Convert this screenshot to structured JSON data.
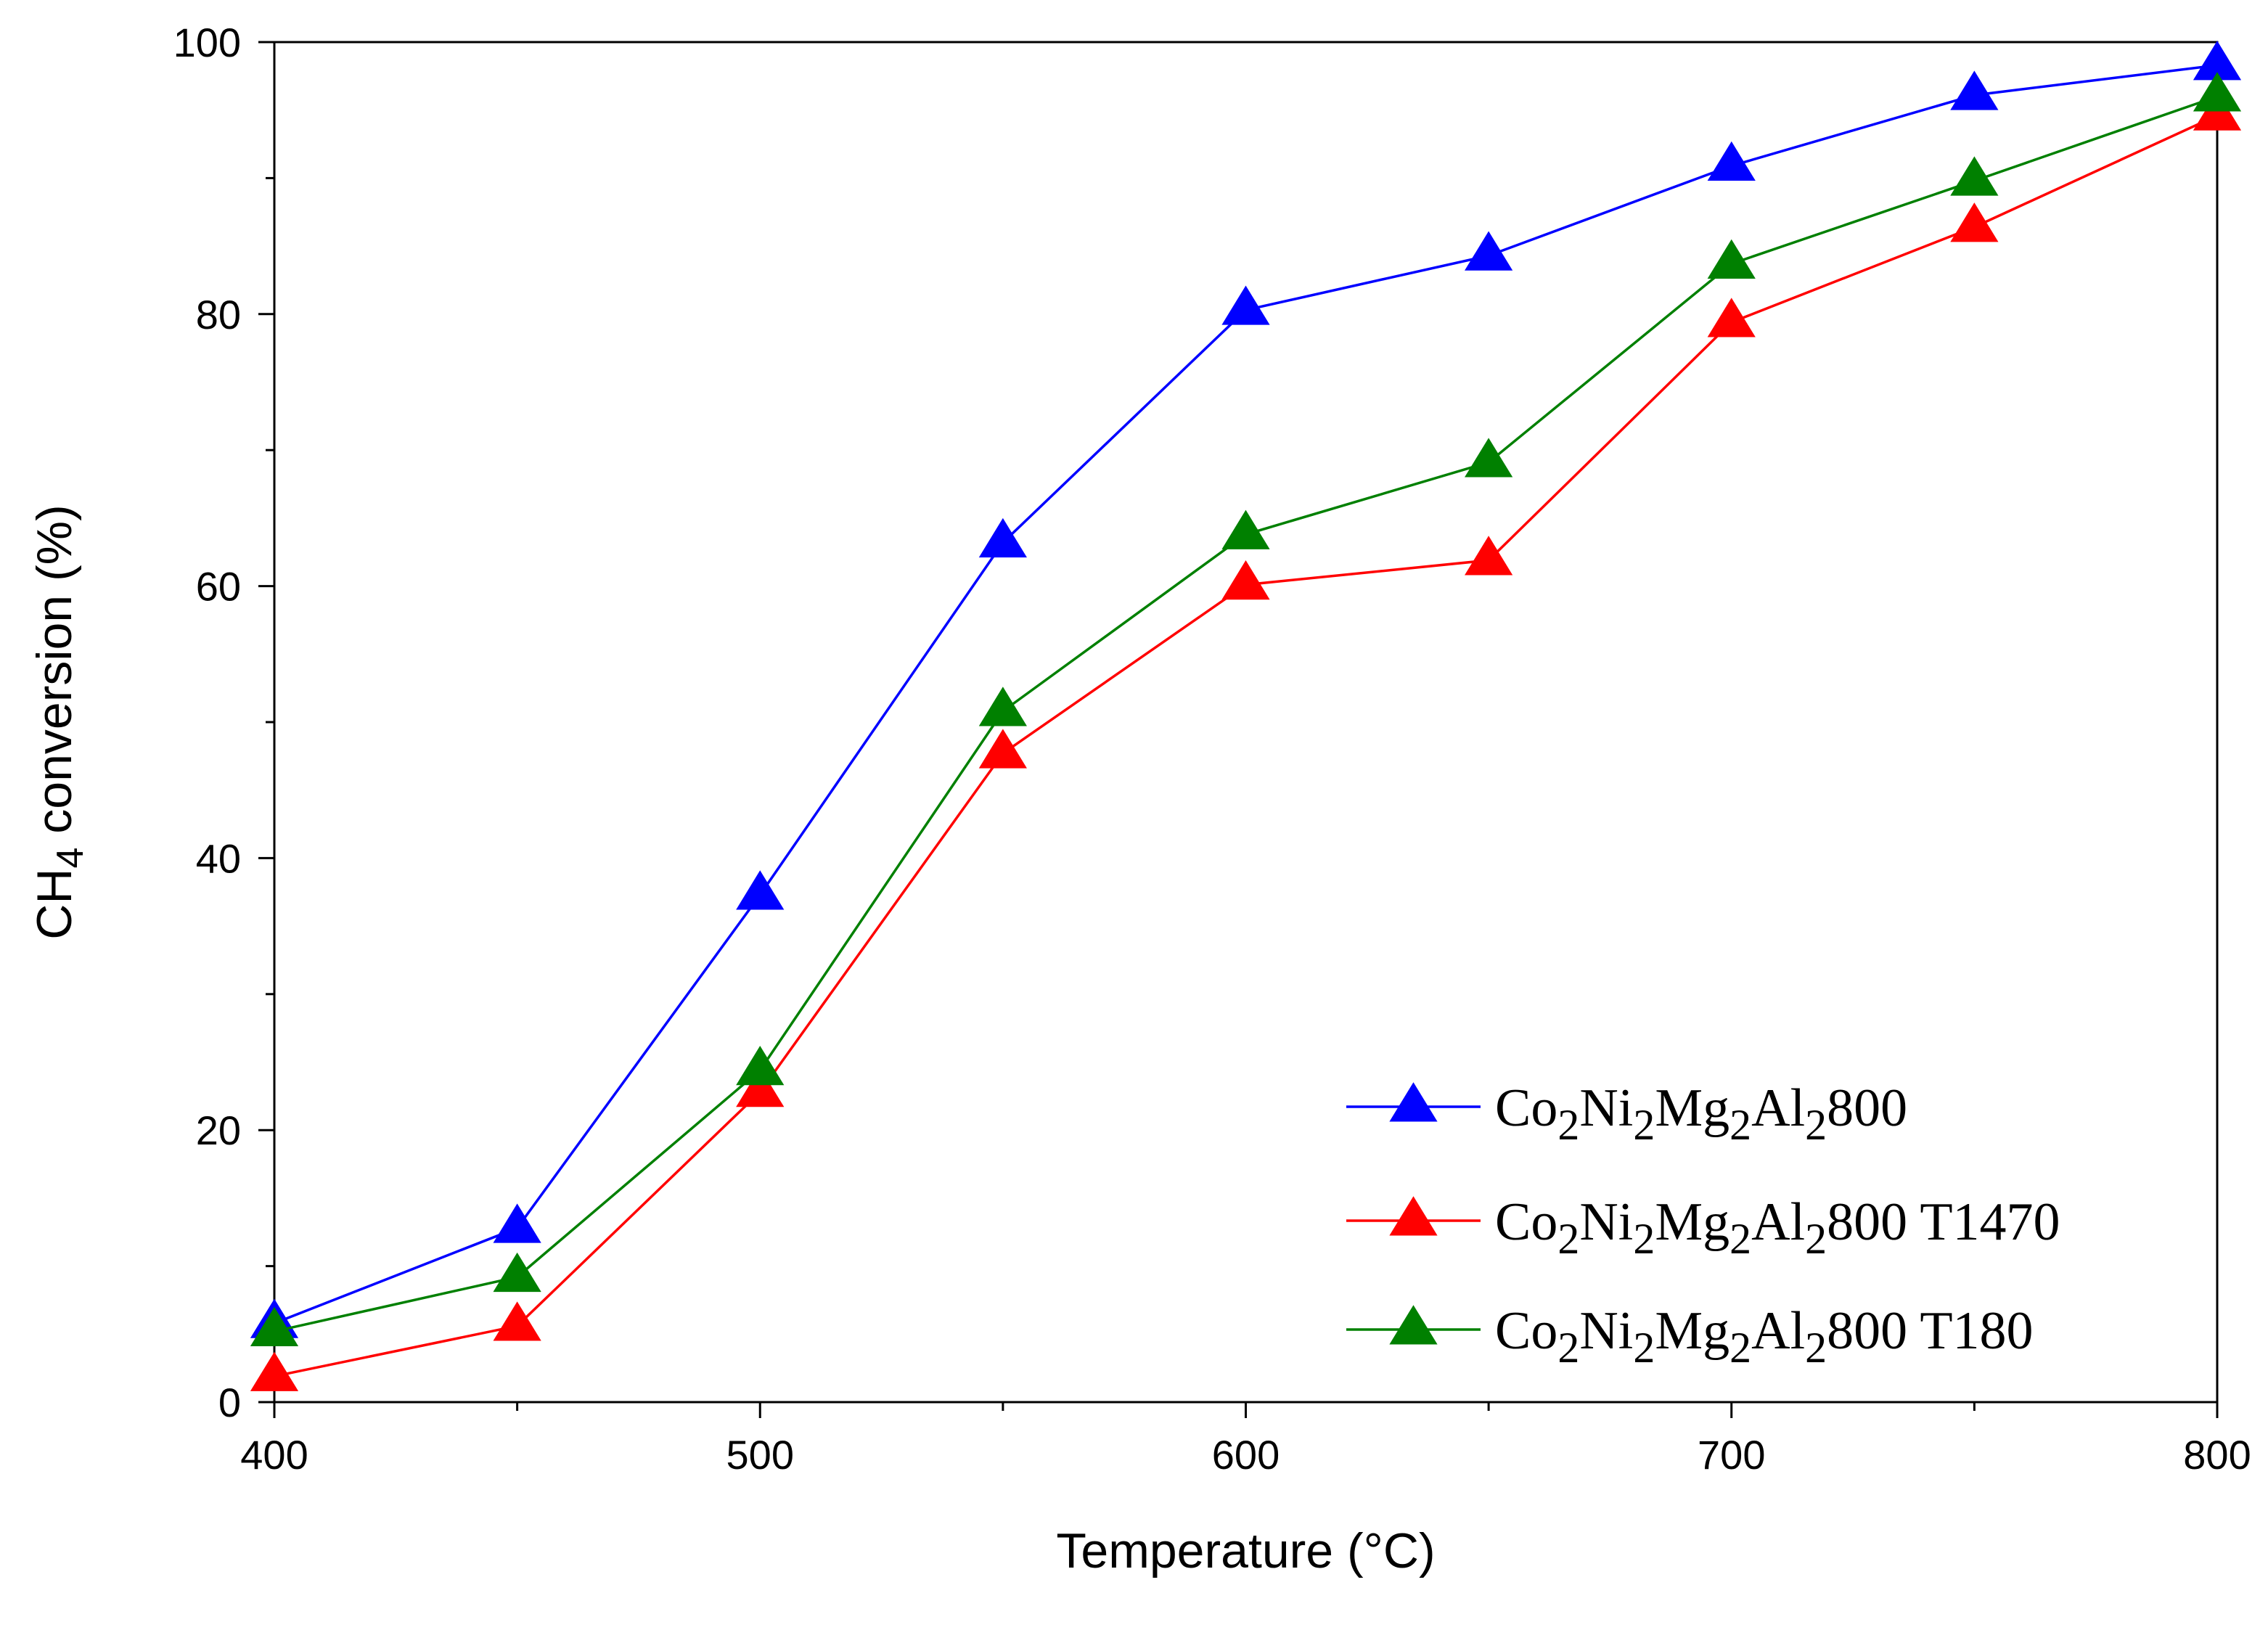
{
  "chart_data": {
    "type": "line",
    "title": "",
    "xlabel": "Temperature (°C)",
    "ylabel": "CH4 conversion (%)",
    "ylabel_parts": {
      "main": "CH",
      "sub": "4",
      "rest": " conversion (%)"
    },
    "xlim": [
      400,
      800
    ],
    "ylim": [
      0,
      100
    ],
    "xticks": [
      400,
      500,
      600,
      700,
      800
    ],
    "yticks": [
      0,
      20,
      40,
      60,
      80,
      100
    ],
    "grid": false,
    "legend_position": "bottom-right",
    "x": [
      400,
      450,
      500,
      550,
      600,
      650,
      700,
      750,
      800
    ],
    "series": [
      {
        "name": "Co2Ni2Mg2Al2800",
        "label_parts": [
          {
            "t": "Co"
          },
          {
            "t": "2",
            "sub": true
          },
          {
            "t": "Ni"
          },
          {
            "t": "2",
            "sub": true
          },
          {
            "t": "Mg"
          },
          {
            "t": "2",
            "sub": true
          },
          {
            "t": "Al"
          },
          {
            "t": "2",
            "sub": true
          },
          {
            "t": "800"
          }
        ],
        "color": "#0000ff",
        "marker": "triangle",
        "values": [
          5.8,
          12.8,
          37.3,
          63.2,
          80.3,
          84.3,
          90.9,
          96.1,
          98.3
        ]
      },
      {
        "name": "Co2Ni2Mg2Al2800 T1470",
        "label_parts": [
          {
            "t": "Co"
          },
          {
            "t": "2",
            "sub": true
          },
          {
            "t": "Ni"
          },
          {
            "t": "2",
            "sub": true
          },
          {
            "t": "Mg"
          },
          {
            "t": "2",
            "sub": true
          },
          {
            "t": "Al"
          },
          {
            "t": "2",
            "sub": true
          },
          {
            "t": "800 T1470"
          }
        ],
        "color": "#ff0000",
        "marker": "triangle",
        "values": [
          1.9,
          5.6,
          22.8,
          47.7,
          60.1,
          61.9,
          79.4,
          86.4,
          94.6
        ]
      },
      {
        "name": "Co2Ni2Mg2Al2800 T180",
        "label_parts": [
          {
            "t": "Co"
          },
          {
            "t": "2",
            "sub": true
          },
          {
            "t": "Ni"
          },
          {
            "t": "2",
            "sub": true
          },
          {
            "t": "Mg"
          },
          {
            "t": "2",
            "sub": true
          },
          {
            "t": "Al"
          },
          {
            "t": "2",
            "sub": true
          },
          {
            "t": "800 T180"
          }
        ],
        "color": "#008000",
        "marker": "triangle",
        "values": [
          5.2,
          9.2,
          24.4,
          50.8,
          63.8,
          69.1,
          83.7,
          89.8,
          96.0
        ]
      }
    ]
  }
}
